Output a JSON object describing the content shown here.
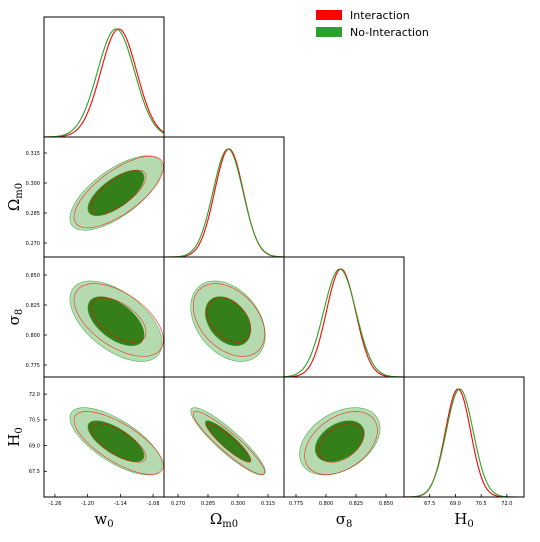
{
  "chart_data": {
    "type": "corner",
    "parameters": [
      {
        "name": "w",
        "subscript": "0",
        "range": [
          -1.28,
          -1.06
        ],
        "ticks": [
          "-1.26",
          "-1.20",
          "-1.14",
          "-1.08"
        ],
        "tick_values": [
          -1.26,
          -1.2,
          -1.14,
          -1.08
        ]
      },
      {
        "name": "Ω",
        "subscript": "m0",
        "range": [
          0.263,
          0.323
        ],
        "ticks": [
          "0.270",
          "0.285",
          "0.300",
          "0.315"
        ],
        "tick_values": [
          0.27,
          0.285,
          0.3,
          0.315
        ]
      },
      {
        "name": "σ",
        "subscript": "8",
        "range": [
          0.765,
          0.865
        ],
        "ticks": [
          "0.775",
          "0.800",
          "0.825",
          "0.850"
        ],
        "tick_values": [
          0.775,
          0.8,
          0.825,
          0.85
        ]
      },
      {
        "name": "H",
        "subscript": "0",
        "range": [
          66.0,
          73.0
        ],
        "ticks": [
          "67.5",
          "69.0",
          "70.5",
          "72.0"
        ],
        "tick_values": [
          67.5,
          69.0,
          70.5,
          72.0
        ]
      }
    ],
    "legend": {
      "position": "top-right",
      "entries": [
        "Interaction",
        "No-Interaction"
      ]
    },
    "series": [
      {
        "name": "Interaction",
        "color": "#ff0000",
        "fill_color": "#ff0000",
        "mean": [
          -1.143,
          0.2955,
          0.8125,
          69.15
        ],
        "sigma": [
          0.033,
          0.0072,
          0.0122,
          0.74
        ],
        "corr": [
          [
            1.0,
            0.7,
            -0.55,
            -0.72
          ],
          [
            0.7,
            1.0,
            -0.38,
            -0.92
          ],
          [
            -0.55,
            -0.38,
            1.0,
            0.4
          ],
          [
            -0.72,
            -0.92,
            0.4,
            1.0
          ]
        ]
      },
      {
        "name": "No-Interaction",
        "color": "#2ca02c",
        "fill_color": "#2ca02c",
        "mean": [
          -1.148,
          0.295,
          0.8115,
          69.25
        ],
        "sigma": [
          0.034,
          0.0075,
          0.0135,
          0.79
        ],
        "corr": [
          [
            1.0,
            0.68,
            -0.55,
            -0.7
          ],
          [
            0.68,
            1.0,
            -0.35,
            -0.9
          ],
          [
            -0.55,
            -0.35,
            1.0,
            0.38
          ],
          [
            -0.7,
            -0.9,
            0.38,
            1.0
          ]
        ]
      }
    ],
    "contour_levels": [
      "1σ",
      "2σ"
    ],
    "grid": false
  }
}
